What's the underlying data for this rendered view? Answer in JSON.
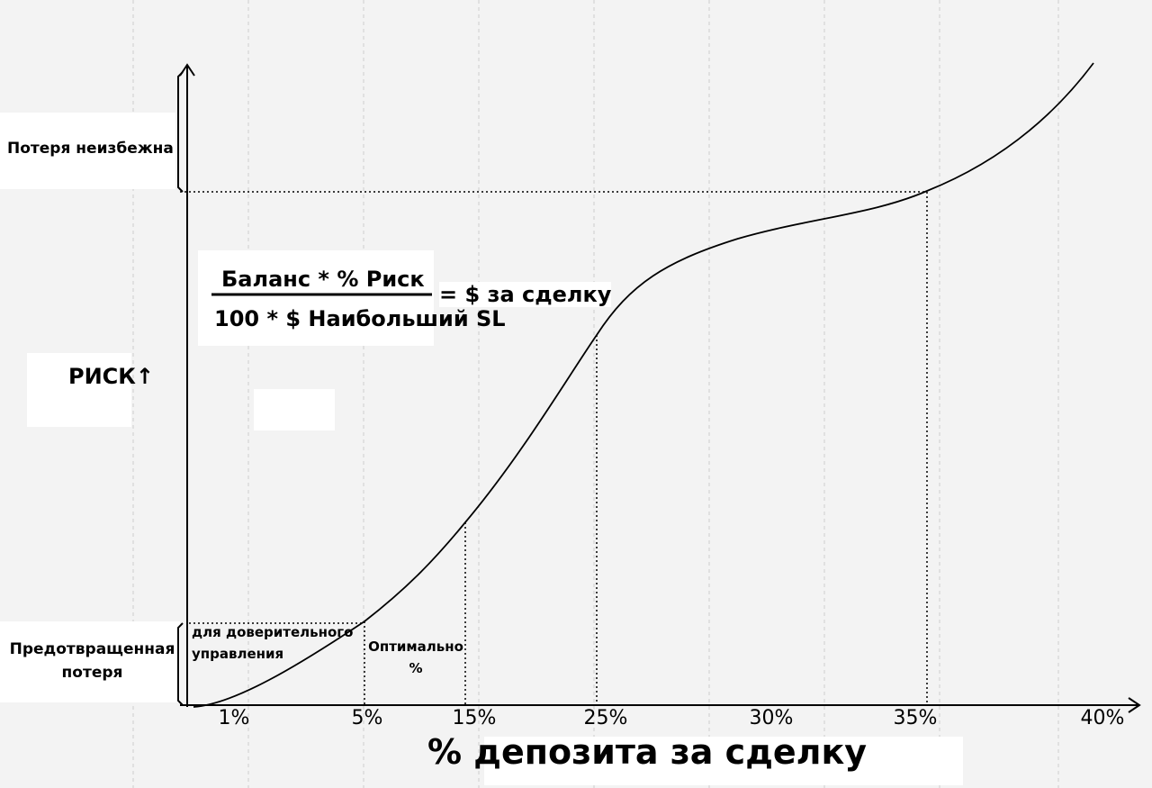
{
  "y_axis_label": "РИСК↑",
  "x_axis_label": "% депозита за сделку",
  "zones": {
    "top": "Потеря неизбежна",
    "bottom": "Предотвращенная потеря"
  },
  "formula": {
    "numerator": "Баланс * % Риск",
    "denominator": "100 * $ Наибольший SL",
    "result": "= $ за сделку"
  },
  "annotations": [
    "для доверительного управления",
    "Оптимально %"
  ],
  "x_labels": [
    "1%",
    "5%",
    "15%",
    "25%",
    "30%",
    "35%",
    "40%"
  ]
}
